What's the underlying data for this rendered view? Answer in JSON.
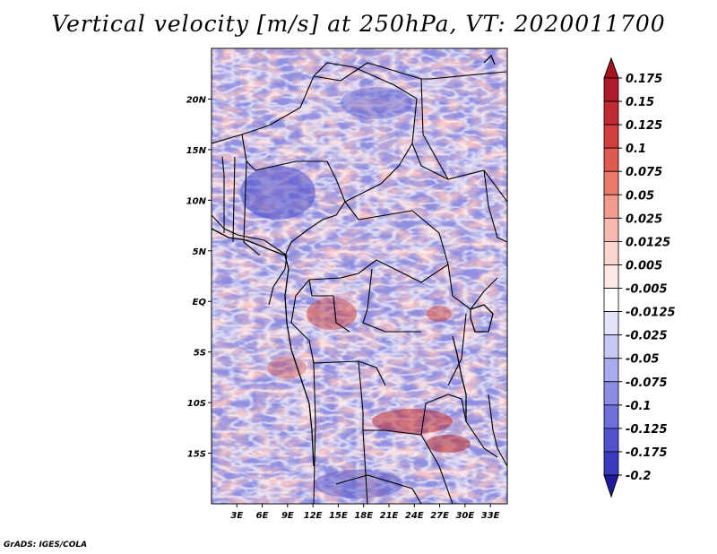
{
  "title": "Vertical velocity [m/s] at 250hPa, VT: 2020011700",
  "credit": "GrADS: IGES/COLA",
  "map": {
    "lon_range": [
      0,
      35
    ],
    "lat_range": [
      -20,
      25
    ],
    "lon_ticks": [
      {
        "value": 3,
        "label": "3E"
      },
      {
        "value": 6,
        "label": "6E"
      },
      {
        "value": 9,
        "label": "9E"
      },
      {
        "value": 12,
        "label": "12E"
      },
      {
        "value": 15,
        "label": "15E"
      },
      {
        "value": 18,
        "label": "18E"
      },
      {
        "value": 21,
        "label": "21E"
      },
      {
        "value": 24,
        "label": "24E"
      },
      {
        "value": 27,
        "label": "27E"
      },
      {
        "value": 30,
        "label": "30E"
      },
      {
        "value": 33,
        "label": "33E"
      }
    ],
    "lat_ticks": [
      {
        "value": 20,
        "label": "20N"
      },
      {
        "value": 15,
        "label": "15N"
      },
      {
        "value": 10,
        "label": "10N"
      },
      {
        "value": 5,
        "label": "5N"
      },
      {
        "value": 0,
        "label": "EQ"
      },
      {
        "value": -5,
        "label": "5S"
      },
      {
        "value": -10,
        "label": "10S"
      },
      {
        "value": -15,
        "label": "15S"
      }
    ]
  },
  "colorbar": {
    "levels": [
      {
        "label": "0.175",
        "color": "#b2182b"
      },
      {
        "label": "0.15",
        "color": "#c22a33"
      },
      {
        "label": "0.125",
        "color": "#d43d3d"
      },
      {
        "label": "0.1",
        "color": "#e05a52"
      },
      {
        "label": "0.075",
        "color": "#eb7a6d"
      },
      {
        "label": "0.05",
        "color": "#f29a8d"
      },
      {
        "label": "0.025",
        "color": "#f8bab0"
      },
      {
        "label": "0.0125",
        "color": "#fcd5ce"
      },
      {
        "label": "0.005",
        "color": "#fdeae6"
      },
      {
        "label": "-0.005",
        "color": "#ffffff"
      },
      {
        "label": "-0.0125",
        "color": "#e4e4fa"
      },
      {
        "label": "-0.025",
        "color": "#c8c8f4"
      },
      {
        "label": "-0.05",
        "color": "#aaaaee"
      },
      {
        "label": "-0.075",
        "color": "#8c8ce6"
      },
      {
        "label": "-0.1",
        "color": "#6e6edc"
      },
      {
        "label": "-0.125",
        "color": "#5252cf"
      },
      {
        "label": "-0.175",
        "color": "#3a3ac0"
      },
      {
        "label": "-0.2",
        "color": "#2626ad"
      }
    ],
    "top_color": "#a8141e",
    "bottom_color": "#1c1c9a"
  }
}
